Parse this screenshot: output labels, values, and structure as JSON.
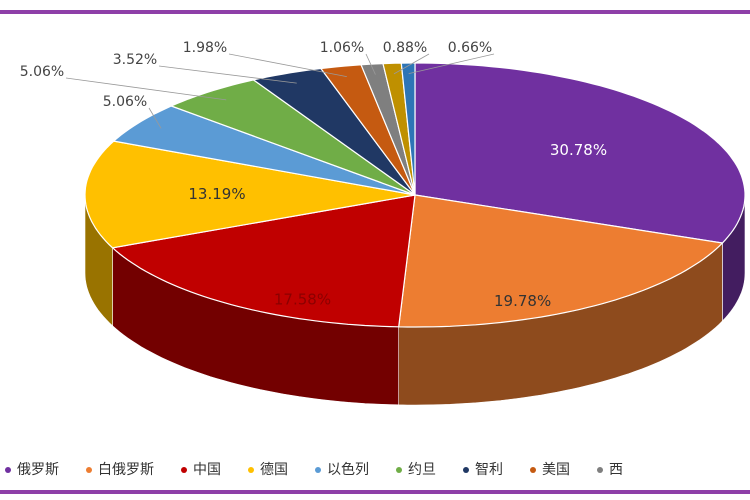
{
  "chart_data": {
    "type": "pie3d",
    "categories": [
      "俄罗斯",
      "白俄罗斯",
      "中国",
      "德国",
      "以色列",
      "约旦",
      "智利",
      "美国",
      "西",
      null,
      null
    ],
    "values": [
      30.78,
      19.78,
      17.58,
      13.19,
      5.06,
      5.06,
      3.52,
      1.98,
      1.06,
      0.88,
      0.66
    ],
    "value_labels": [
      "30.78%",
      "19.78%",
      "17.58%",
      "13.19%",
      "5.06%",
      "5.06%",
      "3.52%",
      "1.98%",
      "1.06%",
      "0.88%",
      "0.66%"
    ],
    "colors": [
      "#7030a0",
      "#ed7d31",
      "#c00000",
      "#ffc000",
      "#5b9bd5",
      "#70ad47",
      "#203864",
      "#c55a11",
      "#7f7f7f",
      "#bf9000",
      "#2e75b6"
    ],
    "legend": "bottom"
  }
}
